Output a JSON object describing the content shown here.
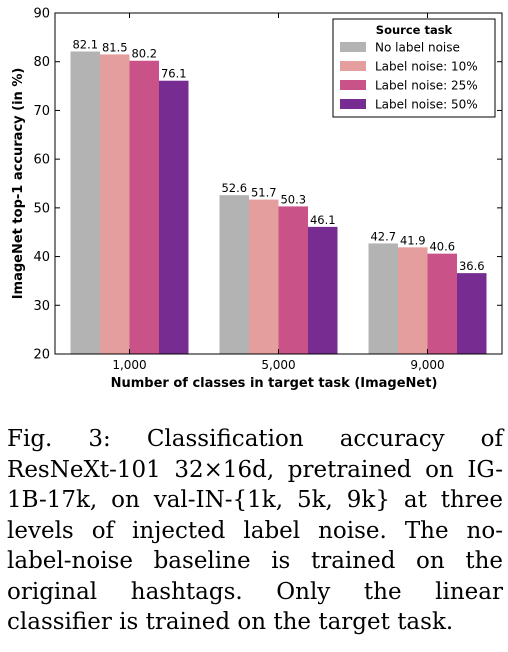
{
  "chart_data": {
    "type": "bar",
    "categories": [
      "1,000",
      "5,000",
      "9,000"
    ],
    "series": [
      {
        "name": "No label noise",
        "values": [
          82.1,
          52.6,
          42.7
        ],
        "labels": [
          "82.1",
          "52.6",
          "42.7"
        ],
        "color": "#b3b3b3"
      },
      {
        "name": "Label noise: 10%",
        "values": [
          81.5,
          51.7,
          41.9
        ],
        "labels": [
          "81.5",
          "51.7",
          "41.9"
        ],
        "color": "#e59e9e"
      },
      {
        "name": "Label noise: 25%",
        "values": [
          80.2,
          50.3,
          40.6
        ],
        "labels": [
          "80.2",
          "50.3",
          "40.6"
        ],
        "color": "#c95389"
      },
      {
        "name": "Label noise: 50%",
        "values": [
          76.1,
          46.1,
          36.6
        ],
        "labels": [
          "76.1",
          "46.1",
          "36.6"
        ],
        "color": "#762c91"
      }
    ],
    "xlabel": "Number of classes in target task (ImageNet)",
    "ylabel": "ImageNet top-1 accuracy (in %)",
    "ylim": [
      20,
      90
    ],
    "yticks": [
      "20",
      "30",
      "40",
      "50",
      "60",
      "70",
      "80",
      "90"
    ],
    "legend_title": "Source task",
    "legend_position": "top-right",
    "grid": false
  },
  "caption": "Fig. 3:  Classification accuracy of ResNeXt-101 32×16d, pretrained on IG-1B-17k, on val-IN-{1k, 5k, 9k} at three levels of injected label noise. The no-label-noise baseline is trained on the original hashtags. Only the linear classifier is trained on the target task."
}
